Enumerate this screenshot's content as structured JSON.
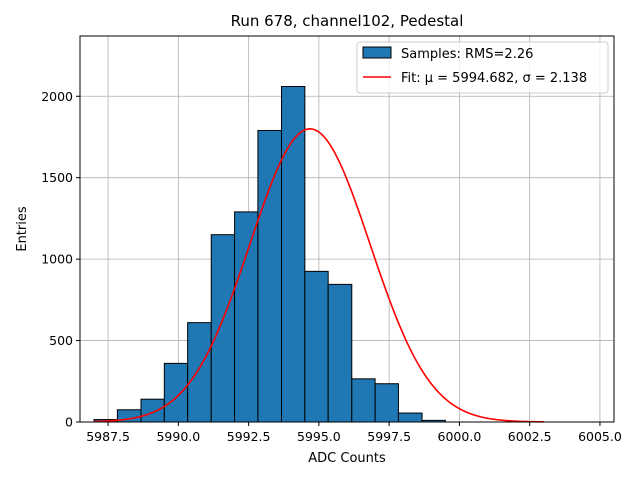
{
  "chart_data": {
    "type": "bar",
    "title": "Run 678, channel102, Pedestal",
    "xlabel": "ADC Counts",
    "ylabel": "Entries",
    "xlim": [
      5986.5,
      6005.5
    ],
    "ylim": [
      0,
      2370
    ],
    "grid": true,
    "legend_position": "top-right",
    "x_ticks": [
      5987.5,
      5990.0,
      5992.5,
      5995.0,
      5997.5,
      6000.0,
      6002.5,
      6005.0
    ],
    "x_tick_labels": [
      "5987.5",
      "5990.0",
      "5992.5",
      "5995.0",
      "5997.5",
      "6000.0",
      "6002.5",
      "6005.0"
    ],
    "y_ticks": [
      0,
      500,
      1000,
      1500,
      2000
    ],
    "y_tick_labels": [
      "0",
      "500",
      "1000",
      "1500",
      "2000"
    ],
    "histogram": {
      "name": "Samples: RMS=2.26",
      "color": "#1f77b4",
      "edge_color": "#000000",
      "bin_edges": [
        5987.0,
        5987.83,
        5988.67,
        5989.5,
        5990.33,
        5991.17,
        5992.0,
        5992.83,
        5993.67,
        5994.5,
        5995.33,
        5996.17,
        5997.0,
        5997.83,
        5998.67,
        5999.5,
        6000.33,
        6001.17,
        6002.0,
        6002.83,
        6003.67,
        6004.5
      ],
      "counts": [
        15,
        75,
        140,
        360,
        610,
        1150,
        1290,
        1790,
        2060,
        925,
        845,
        265,
        235,
        55,
        10,
        0,
        0,
        0,
        0,
        0,
        0
      ]
    },
    "fit": {
      "name": "Fit: μ = 5994.682, σ = 2.138",
      "color": "#ff0000",
      "mu": 5994.682,
      "sigma": 2.138,
      "amplitude": 1800,
      "x_range": [
        5987.0,
        6003.0
      ]
    }
  }
}
